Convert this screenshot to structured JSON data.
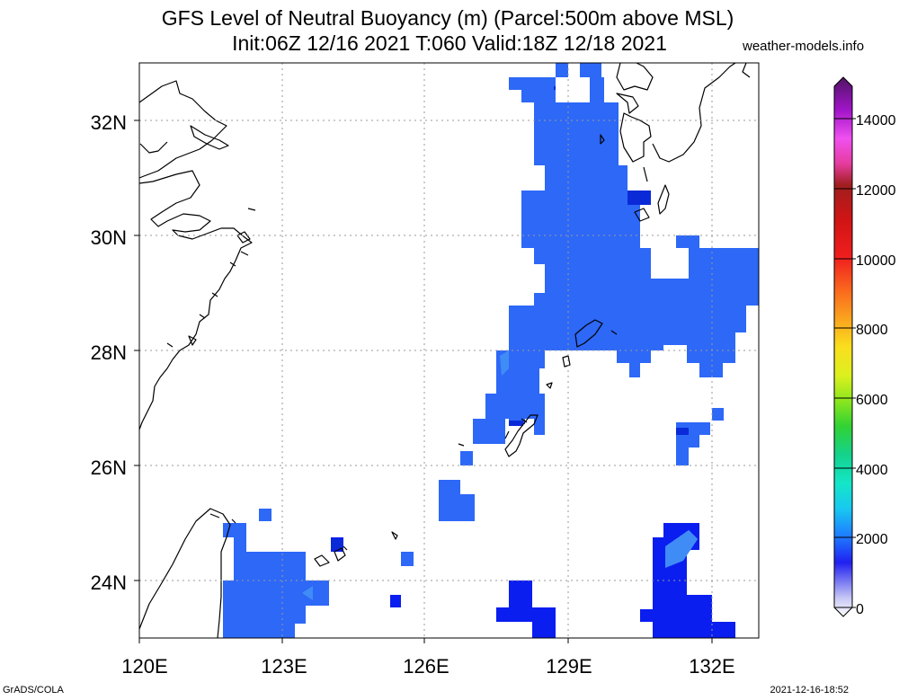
{
  "header": {
    "title_line1": "GFS Level of Neutral Buoyancy (m) (Parcel:500m above MSL)",
    "title_line2": "Init:06Z 12/16 2021 T:060 Valid:18Z 12/18 2021",
    "site": "weather-models.info"
  },
  "map": {
    "lon_range": [
      120,
      133.3
    ],
    "lat_range": [
      23,
      33
    ],
    "x_ticks": [
      {
        "value": 120,
        "label": "120E"
      },
      {
        "value": 123,
        "label": "123E"
      },
      {
        "value": 126,
        "label": "126E"
      },
      {
        "value": 129,
        "label": "129E"
      },
      {
        "value": 132,
        "label": "132E"
      }
    ],
    "y_ticks": [
      {
        "value": 24,
        "label": "24N"
      },
      {
        "value": 26,
        "label": "26N"
      },
      {
        "value": 28,
        "label": "28N"
      },
      {
        "value": 30,
        "label": "30N"
      },
      {
        "value": 32,
        "label": "32N"
      }
    ],
    "grid": true,
    "colors": {
      "field_main": "#2d68f7",
      "field_dark": "#0a1ef0",
      "field_light": "#3a82f6",
      "coast": "#000000",
      "grid": "#9a9a9a"
    }
  },
  "colorbar": {
    "labels": [
      "0",
      "2000",
      "4000",
      "6000",
      "8000",
      "10000",
      "12000",
      "14000"
    ],
    "range": [
      0,
      15000
    ],
    "stops": [
      {
        "value": 0,
        "color": "#ffffff"
      },
      {
        "value": 500,
        "color": "#c8c8f5"
      },
      {
        "value": 1500,
        "color": "#2020f0"
      },
      {
        "value": 2200,
        "color": "#1e78ff"
      },
      {
        "value": 3000,
        "color": "#19c8f0"
      },
      {
        "value": 3700,
        "color": "#14e6c8"
      },
      {
        "value": 4500,
        "color": "#14d28c"
      },
      {
        "value": 5300,
        "color": "#32d232"
      },
      {
        "value": 6000,
        "color": "#8ce61e"
      },
      {
        "value": 6700,
        "color": "#dcf01e"
      },
      {
        "value": 7500,
        "color": "#fade1e"
      },
      {
        "value": 8200,
        "color": "#faaa1e"
      },
      {
        "value": 9000,
        "color": "#fa6e1e"
      },
      {
        "value": 10000,
        "color": "#f01e1e"
      },
      {
        "value": 11000,
        "color": "#d21414"
      },
      {
        "value": 12000,
        "color": "#a01e1e"
      },
      {
        "value": 12600,
        "color": "#e63ca0"
      },
      {
        "value": 13300,
        "color": "#f050f0"
      },
      {
        "value": 14100,
        "color": "#a014c8"
      },
      {
        "value": 15000,
        "color": "#501464"
      }
    ]
  },
  "footer": {
    "left": "GrADS/COLA",
    "right": "2021-12-16-18:52"
  }
}
